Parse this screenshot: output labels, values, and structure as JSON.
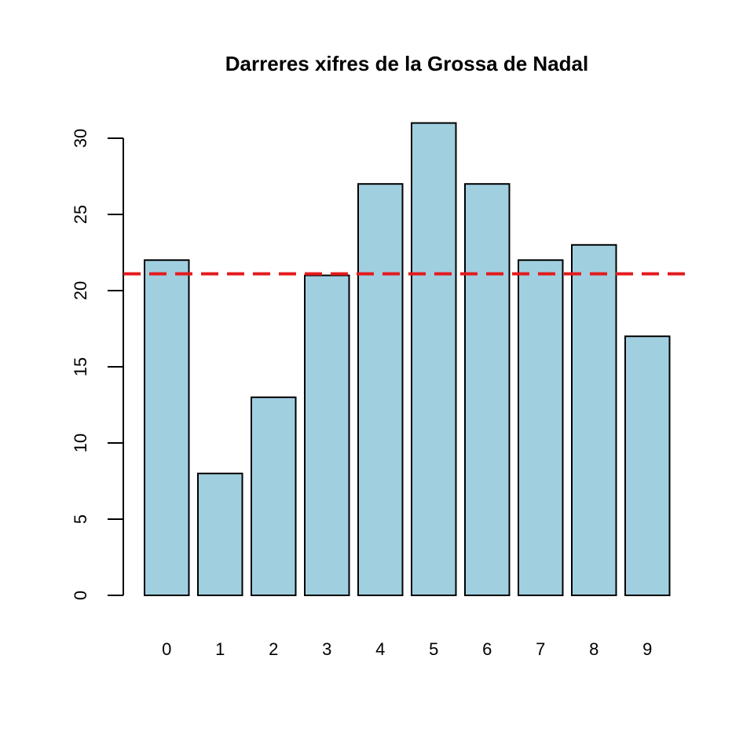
{
  "chart_data": {
    "type": "bar",
    "title": "Darreres xifres de  la Grossa de Nadal",
    "xlabel": "",
    "ylabel": "",
    "categories": [
      "0",
      "1",
      "2",
      "3",
      "4",
      "5",
      "6",
      "7",
      "8",
      "9"
    ],
    "values": [
      22,
      8,
      13,
      21,
      27,
      31,
      27,
      22,
      23,
      17
    ],
    "ylim": [
      0,
      30
    ],
    "y_ticks": [
      0,
      5,
      10,
      15,
      20,
      25,
      30
    ],
    "bar_color": "#A0CFE0",
    "reference_line": {
      "value": 21.1,
      "color": "#E31A1C",
      "style": "dashed"
    },
    "grid": false,
    "legend": "none"
  }
}
